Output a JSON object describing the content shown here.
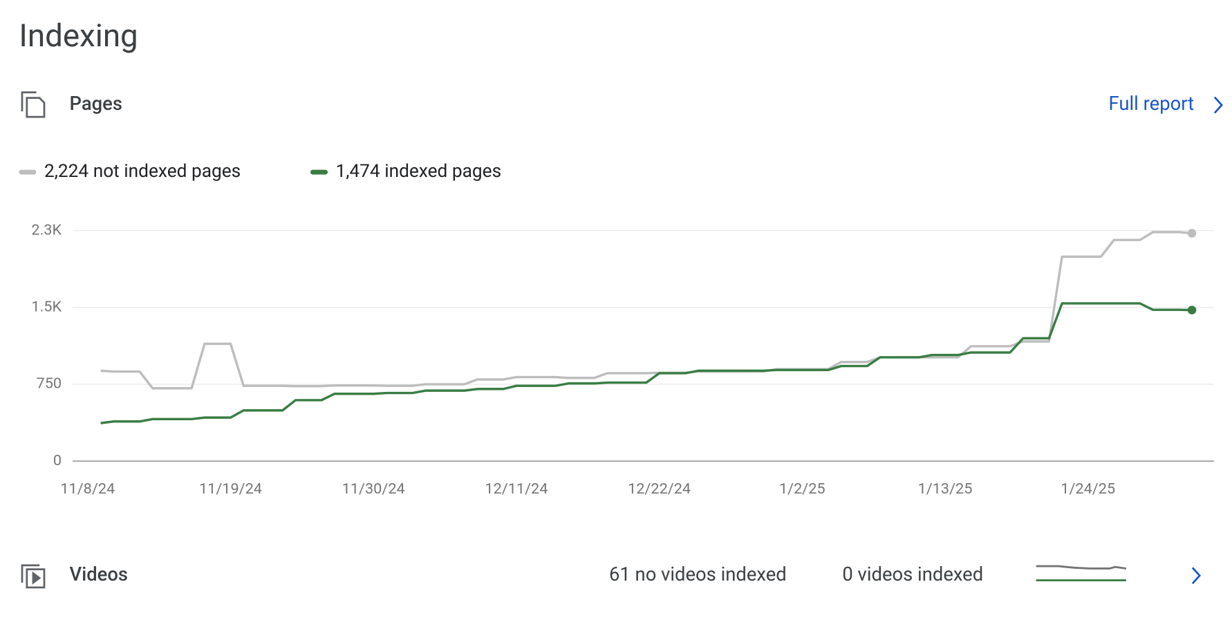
{
  "header": {
    "title": "Indexing"
  },
  "pages": {
    "label": "Pages",
    "link": "Full report"
  },
  "chart_data": {
    "type": "line",
    "x": [
      "11/9/24",
      "11/10/24",
      "11/11/24",
      "11/12/24",
      "11/13/24",
      "11/14/24",
      "11/15/24",
      "11/16/24",
      "11/17/24",
      "11/18/24",
      "11/19/24",
      "11/20/24",
      "11/21/24",
      "11/22/24",
      "11/23/24",
      "11/24/24",
      "11/25/24",
      "11/26/24",
      "11/27/24",
      "11/28/24",
      "11/29/24",
      "11/30/24",
      "12/1/24",
      "12/2/24",
      "12/3/24",
      "12/4/24",
      "12/5/24",
      "12/6/24",
      "12/7/24",
      "12/8/24",
      "12/9/24",
      "12/10/24",
      "12/11/24",
      "12/12/24",
      "12/13/24",
      "12/14/24",
      "12/15/24",
      "12/16/24",
      "12/17/24",
      "12/18/24",
      "12/19/24",
      "12/20/24",
      "12/21/24",
      "12/22/24",
      "12/23/24",
      "12/24/24",
      "12/25/24",
      "12/26/24",
      "12/27/24",
      "12/28/24",
      "12/29/24",
      "12/30/24",
      "12/31/24",
      "1/1/25",
      "1/2/25",
      "1/3/25",
      "1/4/25",
      "1/5/25",
      "1/6/25",
      "1/7/25",
      "1/8/25",
      "1/9/25",
      "1/10/25",
      "1/11/25",
      "1/12/25",
      "1/13/25",
      "1/14/25",
      "1/15/25",
      "1/16/25",
      "1/17/25",
      "1/18/25",
      "1/19/25",
      "1/20/25",
      "1/21/25",
      "1/22/25",
      "1/23/25",
      "1/24/25",
      "1/25/25",
      "1/26/25",
      "1/27/25",
      "1/28/25",
      "1/29/25",
      "1/30/25",
      "1/31/25",
      "2/1/25"
    ],
    "series": [
      {
        "name": "2,224 not indexed pages",
        "color": "#bdbdbd",
        "values": [
          882,
          874,
          874,
          874,
          711,
          711,
          711,
          711,
          1145,
          1145,
          1145,
          735,
          735,
          735,
          735,
          732,
          732,
          732,
          738,
          738,
          738,
          738,
          735,
          735,
          735,
          750,
          750,
          750,
          750,
          797,
          797,
          797,
          820,
          820,
          820,
          820,
          812,
          812,
          812,
          858,
          858,
          858,
          858,
          862,
          862,
          862,
          875,
          875,
          875,
          875,
          875,
          875,
          897,
          897,
          897,
          897,
          897,
          967,
          967,
          967,
          1013,
          1013,
          1013,
          1013,
          1013,
          1013,
          1013,
          1121,
          1121,
          1121,
          1121,
          1168,
          1168,
          1168,
          1995,
          1995,
          1995,
          1995,
          2158,
          2158,
          2158,
          2235,
          2235,
          2235,
          2224
        ]
      },
      {
        "name": "1,474 indexed pages",
        "color": "#3a7d44",
        "values": [
          371,
          387,
          387,
          387,
          410,
          410,
          410,
          410,
          425,
          425,
          425,
          495,
          495,
          495,
          495,
          595,
          595,
          595,
          657,
          657,
          657,
          657,
          665,
          665,
          665,
          688,
          688,
          688,
          688,
          704,
          704,
          704,
          735,
          735,
          735,
          735,
          758,
          758,
          758,
          766,
          766,
          766,
          766,
          858,
          858,
          858,
          882,
          882,
          882,
          882,
          882,
          882,
          889,
          889,
          889,
          889,
          889,
          928,
          928,
          928,
          1013,
          1013,
          1013,
          1013,
          1036,
          1036,
          1036,
          1060,
          1060,
          1060,
          1060,
          1199,
          1199,
          1199,
          1539,
          1539,
          1539,
          1539,
          1539,
          1539,
          1539,
          1477,
          1477,
          1477,
          1474
        ]
      }
    ],
    "xticks": [
      "11/8/24",
      "11/19/24",
      "11/30/24",
      "12/11/24",
      "12/22/24",
      "1/2/25",
      "1/13/25",
      "1/24/25"
    ],
    "ylim": [
      0,
      2250
    ],
    "yticks": [
      0,
      750,
      {
        "value": 1500,
        "label": "1.5K"
      },
      {
        "value": 2250,
        "label": "2.3K"
      }
    ],
    "grid": true
  },
  "videos": {
    "label": "Videos",
    "stats": [
      "61 no videos indexed",
      "0 videos indexed"
    ]
  }
}
